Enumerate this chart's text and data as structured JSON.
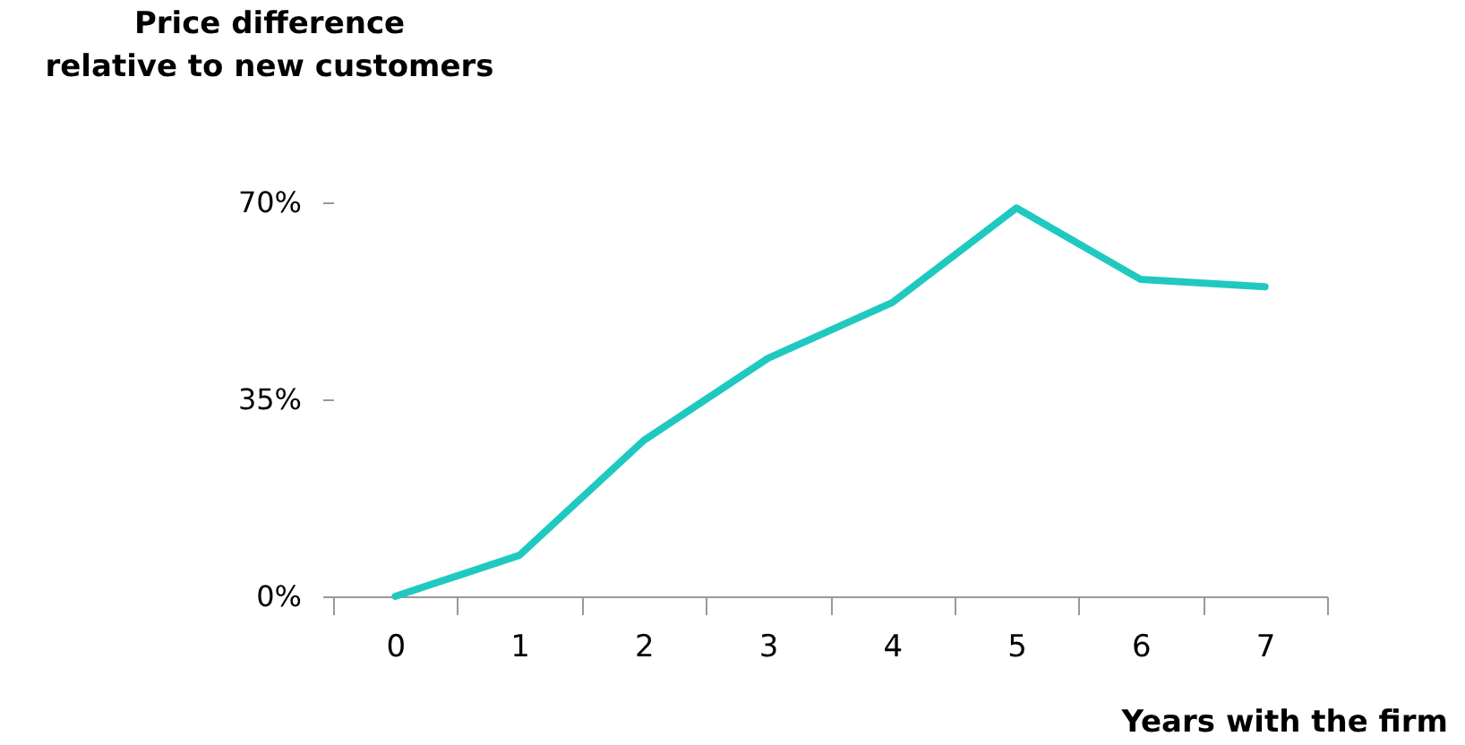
{
  "chart_data": {
    "type": "line",
    "ylabel": "Price difference\nrelative to new customers",
    "xlabel": "Years with the firm",
    "categories": [
      "0",
      "1",
      "2",
      "3",
      "4",
      "5",
      "6",
      "7"
    ],
    "series": [
      {
        "color": "#20c9c0",
        "values": [
          0,
          7.3,
          27.7,
          42.3,
          52.2,
          69,
          56.3,
          55
        ]
      }
    ],
    "ylim": [
      0,
      70
    ],
    "yticks": [
      {
        "value": 0,
        "label": "0%"
      },
      {
        "value": 35,
        "label": "35%"
      },
      {
        "value": 70,
        "label": "70%"
      }
    ],
    "grid": false,
    "legend": false,
    "marker": "none",
    "line_style": "solid"
  }
}
